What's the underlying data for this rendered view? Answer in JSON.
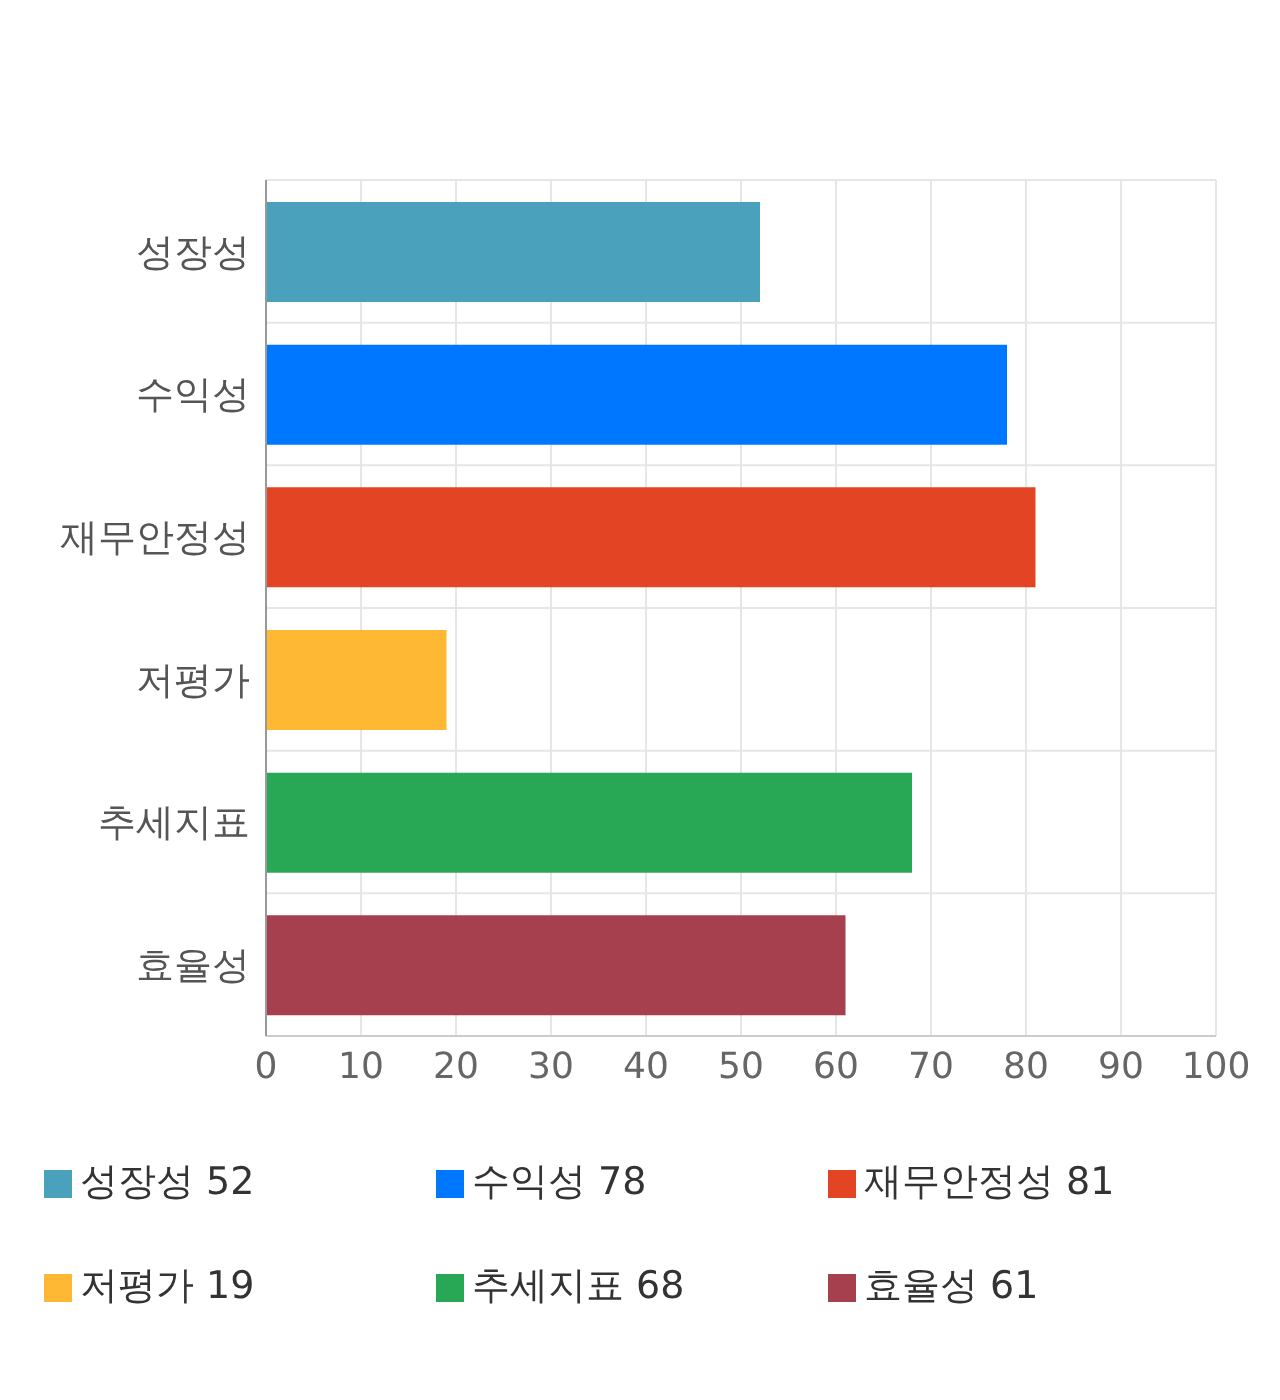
{
  "chart_data": {
    "type": "bar",
    "orientation": "horizontal",
    "stacked": true,
    "categories": [
      "성장성",
      "수익성",
      "재무안정성",
      "저평가",
      "추세지표",
      "효율성"
    ],
    "series": [
      {
        "name": "성장성 52",
        "color": "#4aa1bb",
        "values": [
          52,
          null,
          null,
          null,
          null,
          null
        ]
      },
      {
        "name": "수익성 78",
        "color": "#0077ff",
        "values": [
          null,
          78,
          null,
          null,
          null,
          null
        ]
      },
      {
        "name": "재무안정성 81",
        "color": "#e24424",
        "values": [
          null,
          null,
          81,
          null,
          null,
          null
        ]
      },
      {
        "name": "저평가 19",
        "color": "#ffb833",
        "values": [
          null,
          null,
          null,
          19,
          null,
          null
        ]
      },
      {
        "name": "추세지표 68",
        "color": "#28a755",
        "values": [
          null,
          null,
          null,
          null,
          68,
          null
        ]
      },
      {
        "name": "효율성 61",
        "color": "#a6404e",
        "values": [
          null,
          null,
          null,
          null,
          null,
          61
        ]
      }
    ],
    "xlim": [
      0,
      100
    ],
    "xticks": [
      0,
      10,
      20,
      30,
      40,
      50,
      60,
      70,
      80,
      90,
      100
    ],
    "grid": true,
    "legend": "bottom"
  }
}
